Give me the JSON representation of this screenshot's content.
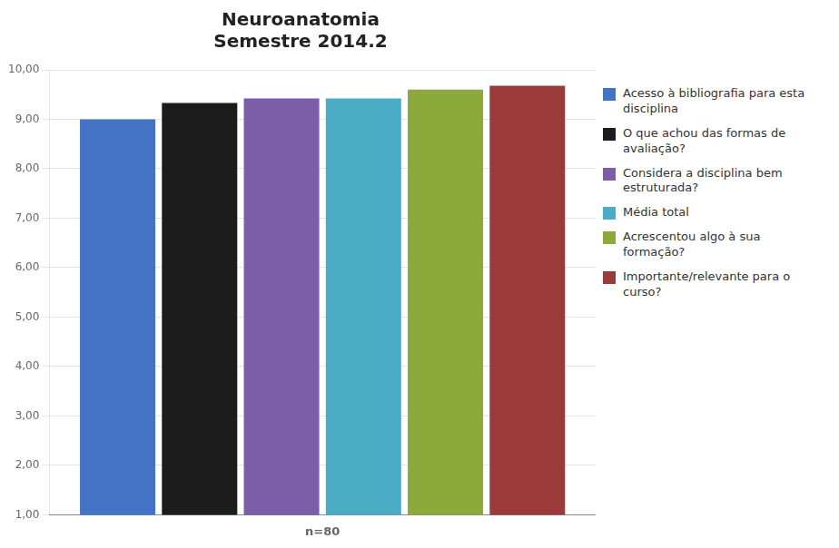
{
  "chart_data": {
    "type": "bar",
    "title": "Neuroanatomia\nSemestre 2014.2",
    "categories": [
      "n=80"
    ],
    "series": [
      {
        "name": "Acesso à bibliografia para esta\ndisciplina",
        "color": "#4472C4",
        "values": [
          9.0
        ]
      },
      {
        "name": "O que achou das formas de\navaliação?",
        "color": "#1C1C1C",
        "values": [
          9.33
        ]
      },
      {
        "name": "Considera a disciplina bem\nestruturada?",
        "color": "#7B5EA7",
        "values": [
          9.42
        ]
      },
      {
        "name": "Média total",
        "color": "#4BACC6",
        "values": [
          9.42
        ]
      },
      {
        "name": "Acrescentou algo à sua\nformação?",
        "color": "#8CAA3B",
        "values": [
          9.6
        ]
      },
      {
        "name": "Importante/relevante para o\ncurso?",
        "color": "#9B3A3A",
        "values": [
          9.68
        ]
      }
    ],
    "ylim": [
      1.0,
      10.0
    ],
    "yticks": [
      {
        "value": 1.0,
        "label": "1,00"
      },
      {
        "value": 2.0,
        "label": "2,00"
      },
      {
        "value": 3.0,
        "label": "3,00"
      },
      {
        "value": 4.0,
        "label": "4,00"
      },
      {
        "value": 5.0,
        "label": "5,00"
      },
      {
        "value": 6.0,
        "label": "6,00"
      },
      {
        "value": 7.0,
        "label": "7,00"
      },
      {
        "value": 8.0,
        "label": "8,00"
      },
      {
        "value": 9.0,
        "label": "9,00"
      },
      {
        "value": 10.0,
        "label": "10,00"
      }
    ],
    "grid": true,
    "legend": "right"
  }
}
